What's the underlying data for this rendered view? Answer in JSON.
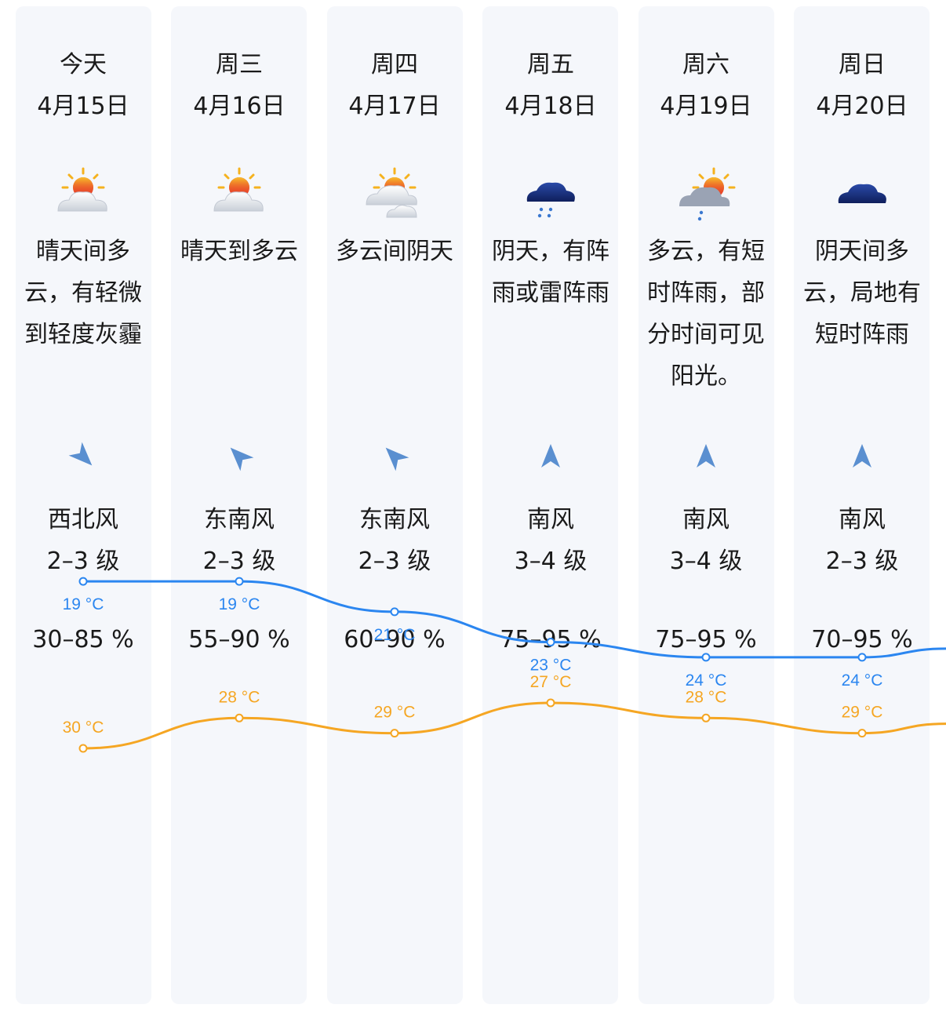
{
  "days": [
    {
      "day": "今天",
      "date": "4月15日",
      "icon": "sun-cloud-icon",
      "desc_lines": [
        "晴天间多",
        "云，有轻微",
        "到轻度灰霾"
      ],
      "wind_dir": "西北风",
      "wind_level": "2–3 级",
      "humidity": "30–85 %"
    },
    {
      "day": "周三",
      "date": "4月16日",
      "icon": "sun-cloud-icon",
      "desc_lines": [
        "晴天到多云"
      ],
      "wind_dir": "东南风",
      "wind_level": "2–3 级",
      "humidity": "55–90 %"
    },
    {
      "day": "周四",
      "date": "4月17日",
      "icon": "partly-cloudy-icon",
      "desc_lines": [
        "多云间阴天"
      ],
      "wind_dir": "东南风",
      "wind_level": "2–3 级",
      "humidity": "60–90 %"
    },
    {
      "day": "周五",
      "date": "4月18日",
      "icon": "rain-cloud-icon",
      "desc_lines": [
        "阴天，有阵",
        "雨或雷阵雨"
      ],
      "wind_dir": "南风",
      "wind_level": "3–4 级",
      "humidity": "75–95 %"
    },
    {
      "day": "周六",
      "date": "4月19日",
      "icon": "sun-shower-icon",
      "desc_lines": [
        "多云，有短",
        "时阵雨，部",
        "分时间可见",
        "阳光。"
      ],
      "wind_dir": "南风",
      "wind_level": "3–4 级",
      "humidity": "75–95 %"
    },
    {
      "day": "周日",
      "date": "4月20日",
      "icon": "overcast-cloud-icon",
      "desc_lines": [
        "阴天间多",
        "云，局地有",
        "短时阵雨"
      ],
      "wind_dir": "南风",
      "wind_level": "2–3 级",
      "humidity": "70–95 %"
    }
  ],
  "wind_arrow_icons": [
    "arrow-nw-wind-icon",
    "arrow-se-wind-icon",
    "arrow-se-wind-icon",
    "arrow-s-wind-icon",
    "arrow-s-wind-icon",
    "arrow-s-wind-icon"
  ],
  "chart_data": {
    "type": "line",
    "categories": [
      "4月15日",
      "4月16日",
      "4月17日",
      "4月18日",
      "4月19日",
      "4月20日"
    ],
    "unit": "°C",
    "series": [
      {
        "key": "high",
        "values": [
          30,
          28,
          29,
          27,
          28,
          29
        ],
        "color": "#f5a623"
      },
      {
        "key": "low",
        "values": [
          19,
          19,
          21,
          23,
          24,
          24
        ],
        "color": "#2b86f0"
      }
    ],
    "labels_high": [
      "30 °C",
      "28 °C",
      "29 °C",
      "27 °C",
      "28 °C",
      "29 °C"
    ],
    "labels_low": [
      "19 °C",
      "19 °C",
      "21 °C",
      "23 °C",
      "24 °C",
      "24 °C"
    ]
  }
}
